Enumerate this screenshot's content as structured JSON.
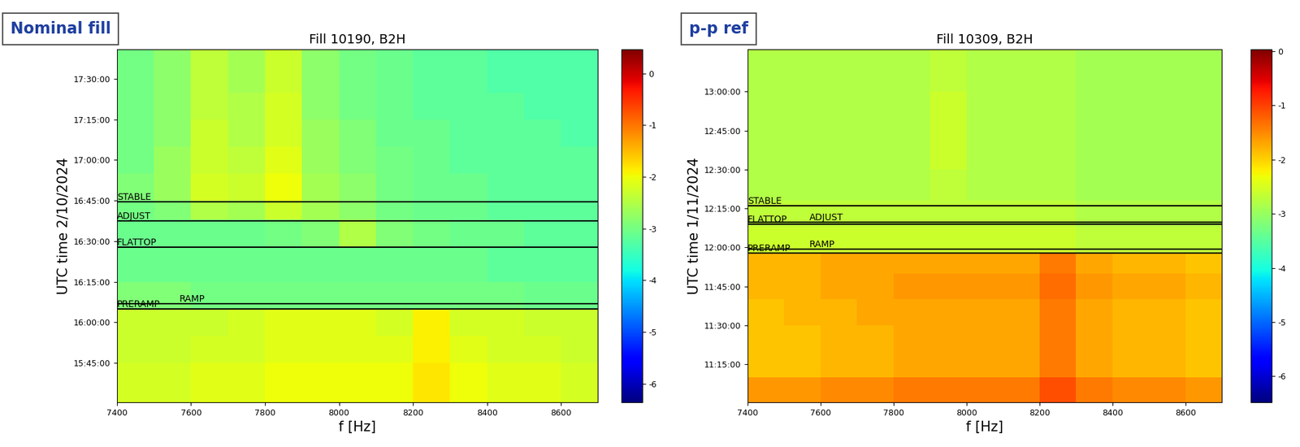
{
  "chart_data": [
    {
      "type": "heatmap",
      "title": "Fill 10190, B2H",
      "badge": "Nominal fill",
      "xlabel": "f [Hz]",
      "ylabel": "UTC time 2/10/2024",
      "color": "jet",
      "xlim": [
        7400,
        8700
      ],
      "xticks": [
        7400,
        7600,
        7800,
        8000,
        8200,
        8400,
        8600
      ],
      "ylim": [
        930.4,
        1061
      ],
      "yticks": [
        {
          "value": 945,
          "label": "15:45:00"
        },
        {
          "value": 960,
          "label": "16:00:00"
        },
        {
          "value": 975,
          "label": "16:15:00"
        },
        {
          "value": 990,
          "label": "16:30:00"
        },
        {
          "value": 1005,
          "label": "16:45:00"
        },
        {
          "value": 1020,
          "label": "17:00:00"
        },
        {
          "value": 1035,
          "label": "17:15:00"
        },
        {
          "value": 1050,
          "label": "17:30:00"
        }
      ],
      "annotations": [
        {
          "label": "STABLE",
          "value": 1004.5
        },
        {
          "label": "ADJUST",
          "value": 997.6
        },
        {
          "label": "FLATTOP",
          "value": 987.8
        },
        {
          "label": "RAMP",
          "value": 966.9
        },
        {
          "label": "PRERAMP",
          "value": 965.0
        }
      ],
      "x_edges": [
        7400,
        7500,
        7600,
        7700,
        7800,
        7900,
        8000,
        8100,
        8200,
        8300,
        8400,
        8500,
        8600,
        8700
      ],
      "y_edges": [
        930,
        945,
        955,
        965,
        975,
        988,
        998,
        1005,
        1015,
        1025,
        1035,
        1045,
        1061
      ],
      "cells": [
        [
          -2.2,
          -2.2,
          -2.1,
          -2.1,
          -2.0,
          -2.0,
          -2.0,
          -2.0,
          -1.8,
          -2.0,
          -2.1,
          -2.1,
          -2.2
        ],
        [
          -2.3,
          -2.3,
          -2.2,
          -2.2,
          -2.1,
          -2.1,
          -2.1,
          -2.1,
          -1.9,
          -2.1,
          -2.2,
          -2.2,
          -2.3
        ],
        [
          -2.3,
          -2.3,
          -2.3,
          -2.2,
          -2.1,
          -2.1,
          -2.1,
          -2.2,
          -1.9,
          -2.2,
          -2.2,
          -2.3,
          -2.3
        ],
        [
          -2.9,
          -2.9,
          -3.0,
          -3.0,
          -3.0,
          -3.0,
          -3.0,
          -3.0,
          -3.0,
          -3.0,
          -3.0,
          -3.1,
          -3.1
        ],
        [
          -3.1,
          -3.1,
          -3.1,
          -3.1,
          -3.1,
          -3.1,
          -3.1,
          -3.1,
          -3.1,
          -3.1,
          -3.2,
          -3.2,
          -3.2
        ],
        [
          -3.1,
          -3.1,
          -3.1,
          -3.1,
          -3.0,
          -2.9,
          -2.5,
          -2.9,
          -3.0,
          -3.1,
          -3.1,
          -3.2,
          -3.2
        ],
        [
          -3.0,
          -2.9,
          -2.5,
          -2.6,
          -2.3,
          -2.6,
          -2.8,
          -3.0,
          -3.1,
          -3.1,
          -3.2,
          -3.2,
          -3.2
        ],
        [
          -2.9,
          -2.7,
          -2.2,
          -2.3,
          -2.0,
          -2.6,
          -2.8,
          -3.0,
          -3.1,
          -3.1,
          -3.2,
          -3.2,
          -3.2
        ],
        [
          -3.0,
          -2.7,
          -2.3,
          -2.4,
          -2.1,
          -2.7,
          -2.9,
          -3.0,
          -3.1,
          -3.2,
          -3.2,
          -3.2,
          -3.2
        ],
        [
          -3.0,
          -2.8,
          -2.3,
          -2.5,
          -2.2,
          -2.7,
          -2.9,
          -3.1,
          -3.1,
          -3.2,
          -3.2,
          -3.2,
          -3.3
        ],
        [
          -3.0,
          -2.8,
          -2.4,
          -2.5,
          -2.2,
          -2.8,
          -3.0,
          -3.1,
          -3.2,
          -3.2,
          -3.2,
          -3.3,
          -3.3
        ],
        [
          -3.0,
          -2.8,
          -2.4,
          -2.6,
          -2.3,
          -2.8,
          -3.0,
          -3.1,
          -3.2,
          -3.2,
          -3.3,
          -3.3,
          -3.3
        ]
      ],
      "colorbar": {
        "range": [
          -6.36,
          0.47
        ],
        "ticks": [
          0,
          -1,
          -2,
          -3,
          -4,
          -5,
          -6
        ]
      }
    },
    {
      "type": "heatmap",
      "title": "Fill 10309, B2H",
      "badge": "p-p ref",
      "xlabel": "f [Hz]",
      "ylabel": "UTC time 1/11/2024",
      "color": "jet",
      "xlim": [
        7400,
        8700
      ],
      "xticks": [
        7400,
        7600,
        7800,
        8000,
        8200,
        8400,
        8600
      ],
      "ylim": [
        660.4,
        796.3
      ],
      "yticks": [
        {
          "value": 675,
          "label": "11:15:00"
        },
        {
          "value": 690,
          "label": "11:30:00"
        },
        {
          "value": 705,
          "label": "11:45:00"
        },
        {
          "value": 720,
          "label": "12:00:00"
        },
        {
          "value": 735,
          "label": "12:15:00"
        },
        {
          "value": 750,
          "label": "12:30:00"
        },
        {
          "value": 765,
          "label": "12:45:00"
        },
        {
          "value": 780,
          "label": "13:00:00"
        }
      ],
      "annotations": [
        {
          "label": "STABLE",
          "value": 736.1
        },
        {
          "label": "ADJUST",
          "value": 729.8
        },
        {
          "label": "FLATTOP",
          "value": 728.9
        },
        {
          "label": "RAMP",
          "value": 719.4
        },
        {
          "label": "PRERAMP",
          "value": 717.7
        }
      ],
      "x_edges": [
        7400,
        7500,
        7600,
        7700,
        7800,
        7900,
        8000,
        8100,
        8200,
        8300,
        8400,
        8500,
        8600,
        8700
      ],
      "y_edges": [
        660,
        670,
        680,
        690,
        700,
        710,
        718,
        728,
        738,
        750,
        765,
        780,
        797
      ],
      "cells": [
        [
          -1.6,
          -1.6,
          -1.5,
          -1.5,
          -1.4,
          -1.4,
          -1.4,
          -1.4,
          -1.1,
          -1.4,
          -1.5,
          -1.5,
          -1.6
        ],
        [
          -1.9,
          -1.9,
          -1.8,
          -1.8,
          -1.7,
          -1.7,
          -1.7,
          -1.7,
          -1.4,
          -1.7,
          -1.8,
          -1.8,
          -1.9
        ],
        [
          -1.9,
          -1.9,
          -1.8,
          -1.8,
          -1.7,
          -1.7,
          -1.7,
          -1.7,
          -1.4,
          -1.7,
          -1.8,
          -1.8,
          -1.9
        ],
        [
          -1.9,
          -1.8,
          -1.8,
          -1.7,
          -1.7,
          -1.7,
          -1.7,
          -1.7,
          -1.4,
          -1.7,
          -1.8,
          -1.8,
          -1.9
        ],
        [
          -1.8,
          -1.8,
          -1.7,
          -1.7,
          -1.6,
          -1.6,
          -1.6,
          -1.6,
          -1.3,
          -1.6,
          -1.7,
          -1.7,
          -1.8
        ],
        [
          -1.8,
          -1.8,
          -1.7,
          -1.7,
          -1.7,
          -1.7,
          -1.7,
          -1.7,
          -1.4,
          -1.7,
          -1.8,
          -1.8,
          -1.9
        ],
        [
          -2.6,
          -2.6,
          -2.6,
          -2.6,
          -2.6,
          -2.6,
          -2.6,
          -2.6,
          -2.6,
          -2.7,
          -2.7,
          -2.7,
          -2.7
        ],
        [
          -2.7,
          -2.7,
          -2.7,
          -2.7,
          -2.7,
          -2.7,
          -2.7,
          -2.7,
          -2.7,
          -2.8,
          -2.8,
          -2.8,
          -2.8
        ],
        [
          -2.8,
          -2.8,
          -2.8,
          -2.8,
          -2.8,
          -2.7,
          -2.8,
          -2.8,
          -2.8,
          -2.9,
          -2.9,
          -2.9,
          -2.9
        ],
        [
          -2.8,
          -2.8,
          -2.8,
          -2.8,
          -2.8,
          -2.6,
          -2.8,
          -2.8,
          -2.8,
          -2.9,
          -2.9,
          -2.9,
          -2.9
        ],
        [
          -2.8,
          -2.8,
          -2.8,
          -2.8,
          -2.8,
          -2.6,
          -2.8,
          -2.8,
          -2.8,
          -2.9,
          -2.9,
          -2.9,
          -2.9
        ],
        [
          -2.8,
          -2.8,
          -2.8,
          -2.8,
          -2.8,
          -2.7,
          -2.8,
          -2.8,
          -2.8,
          -2.9,
          -2.9,
          -2.9,
          -2.9
        ]
      ],
      "colorbar": {
        "range": [
          -6.48,
          0.04
        ],
        "ticks": [
          0,
          -1,
          -2,
          -3,
          -4,
          -5,
          -6
        ]
      }
    }
  ]
}
